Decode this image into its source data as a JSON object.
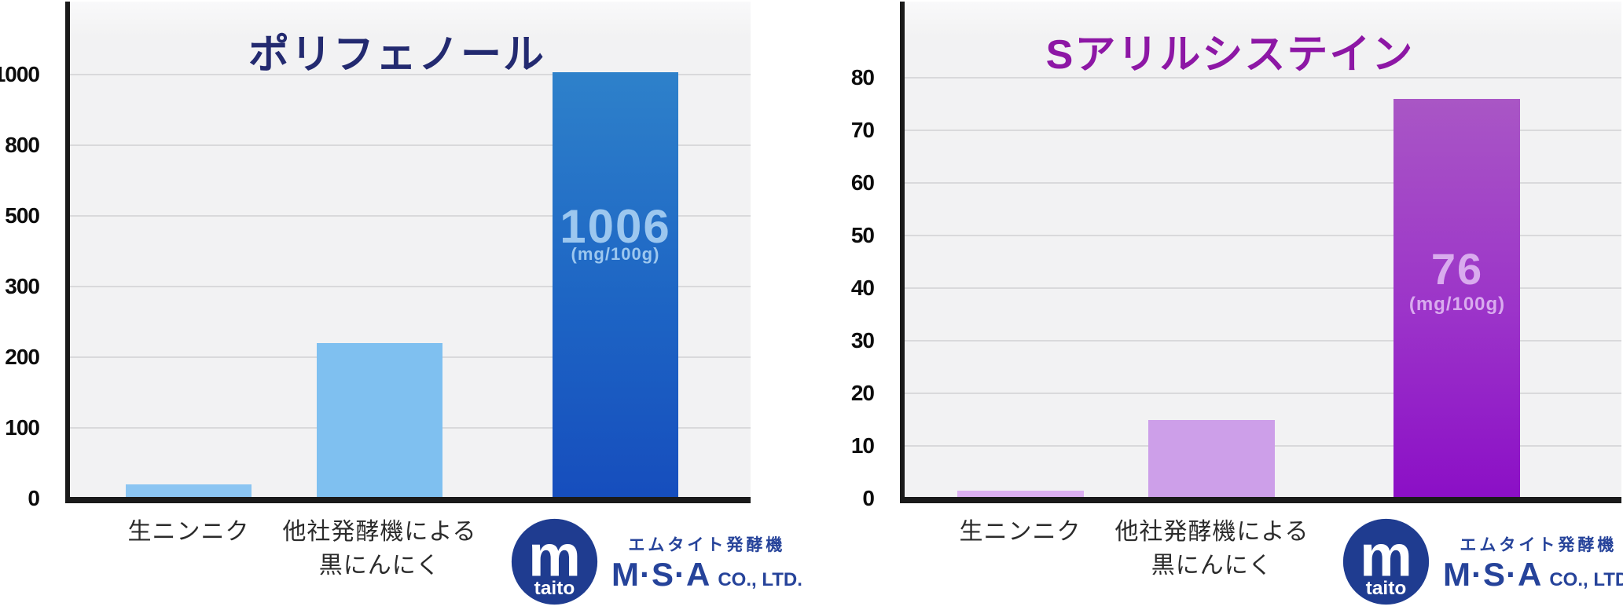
{
  "chart_data": [
    {
      "type": "bar",
      "title": "ポリフェノール",
      "unit": "mg/100g",
      "categories": [
        "生ニンニク",
        "他社発酵機による黒にんにく",
        "エムタイト発酵機 M·S·A CO., LTD.（ロゴ）"
      ],
      "category_lines": [
        [
          "生ニンニク"
        ],
        [
          "他社発酵機による",
          "黒にんにく"
        ],
        [
          "@logo"
        ]
      ],
      "values": [
        20,
        220,
        1006
      ],
      "bar_value_label": "1006",
      "bar_unit_label": "(mg/100g)",
      "yticks": [
        0,
        100,
        200,
        300,
        500,
        800,
        1000
      ],
      "y_scale": "non-linear: listed ticks evenly spaced",
      "grid": true,
      "legend": false,
      "colors": {
        "bar1": "#8bc5f2",
        "bar2": "#7fc0f0",
        "bar3_top": "#2e81ca",
        "bar3_mid": "#1d64c4",
        "bar3_bottom": "#164dbd",
        "title": "#232a70",
        "value_label": "#9cc7ef"
      }
    },
    {
      "type": "bar",
      "title": "Sアリルシステイン",
      "unit": "mg/100g",
      "categories": [
        "生ニンニク",
        "他社発酵機による黒にんにく",
        "エムタイト発酵機 M·S·A CO., LTD.（ロゴ）"
      ],
      "category_lines": [
        [
          "生ニンニク"
        ],
        [
          "他社発酵機による",
          "黒にんにく"
        ],
        [
          "@logo"
        ]
      ],
      "values": [
        1.5,
        15,
        76
      ],
      "bar_value_label": "76",
      "bar_unit_label": "(mg/100g)",
      "yticks": [
        0,
        10,
        20,
        30,
        40,
        50,
        60,
        70,
        80
      ],
      "y_scale": "linear",
      "grid": true,
      "legend": false,
      "colors": {
        "bar1": "#dcb0f2",
        "bar2": "#cd9fe9",
        "bar3_top": "#a956c5",
        "bar3_mid": "#9b32c9",
        "bar3_bottom": "#8b0ec6",
        "title": "#8d17a5",
        "value_label": "#d9abee"
      }
    }
  ],
  "logo": {
    "mark_letter": "m",
    "mark_text": "taito",
    "line1": "エムタイト発酵機",
    "line2_main": "M·S·A",
    "line2_sub": "CO., LTD.",
    "circle_navy": "#1f3c90",
    "text_navy": "#26439a"
  }
}
